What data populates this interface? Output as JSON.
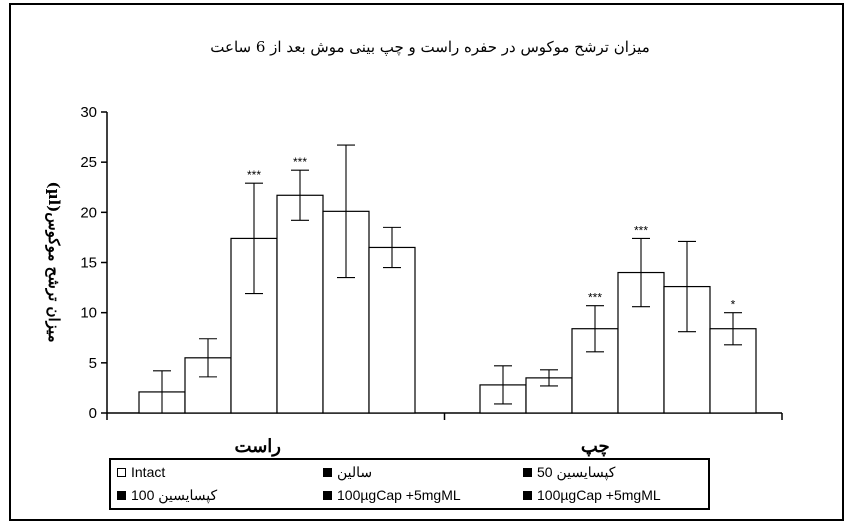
{
  "chart_data": {
    "type": "bar",
    "title": "میزان ترشح موکوس در حفره راست و چپ بینی موش بعد از 6 ساعت",
    "ylabel": "میزان ترشح موکوس(µl)",
    "ylim": [
      0,
      30
    ],
    "yticks": [
      0,
      5,
      10,
      15,
      20,
      25,
      30
    ],
    "grid": false,
    "legend_position": "bottom",
    "groups": [
      "راست",
      "چپ"
    ],
    "series": [
      {
        "name": "Intact",
        "values": [
          2.1,
          2.8
        ],
        "errors": [
          2.1,
          1.9
        ],
        "sig": [
          "",
          ""
        ]
      },
      {
        "name": "سالین",
        "values": [
          5.5,
          3.5
        ],
        "errors": [
          1.9,
          0.8
        ],
        "sig": [
          "",
          ""
        ]
      },
      {
        "name": "کپسایسین 50",
        "values": [
          17.4,
          8.4
        ],
        "errors": [
          5.5,
          2.3
        ],
        "sig": [
          "***",
          "***"
        ]
      },
      {
        "name": "کپسایسین 100",
        "values": [
          21.7,
          14.0
        ],
        "errors": [
          2.5,
          3.4
        ],
        "sig": [
          "***",
          "***"
        ]
      },
      {
        "name": "100µgCap +5mgML",
        "values": [
          20.1,
          12.6
        ],
        "errors": [
          6.6,
          4.5
        ],
        "sig": [
          "",
          ""
        ]
      },
      {
        "name": "100µgCap +5mgML",
        "values": [
          16.5,
          8.4
        ],
        "errors": [
          2.0,
          1.6
        ],
        "sig": [
          "",
          "*"
        ]
      }
    ]
  },
  "legend": {
    "items": [
      {
        "label": "Intact",
        "marker": "hollow"
      },
      {
        "label": "سالین",
        "marker": "solid"
      },
      {
        "label": "کپسایسین 50",
        "marker": "solid"
      },
      {
        "label": "کپسایسین 100",
        "marker": "solid"
      },
      {
        "label": "100µgCap +5mgML",
        "marker": "solid"
      },
      {
        "label": "100µgCap +5mgML",
        "marker": "solid"
      }
    ]
  }
}
